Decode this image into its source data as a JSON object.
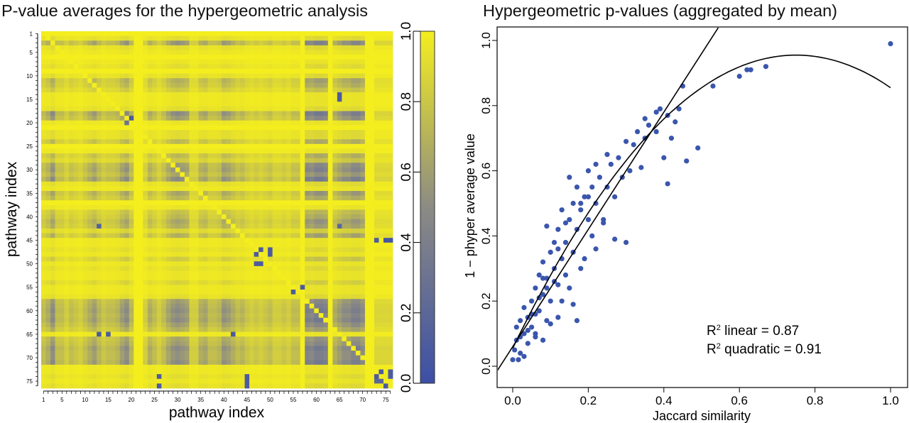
{
  "colors": {
    "low": "#3c4fa6",
    "mid": "#8c8b84",
    "high": "#f4ee1e",
    "point": "#3a56ad",
    "line": "#000000"
  },
  "chart_data": [
    {
      "type": "heatmap",
      "title": "P-value averages for the hypergeometric analysis",
      "xlabel": "pathway index",
      "ylabel": "pathway index",
      "n": 76,
      "tick_labels": [
        "1",
        "5",
        "10",
        "15",
        "20",
        "25",
        "30",
        "35",
        "40",
        "45",
        "50",
        "55",
        "60",
        "65",
        "70",
        "75"
      ],
      "colorbar": {
        "range": [
          0,
          1
        ],
        "ticks": [
          "0.0",
          "0.2",
          "0.4",
          "0.6",
          "0.8",
          "1.0"
        ]
      },
      "model": "value = 1 - 1.6*row_weight*col_weight, diagonal = 1, overridden by outliers [row,col,value]",
      "row_weights": [
        0,
        0.1,
        0.5,
        0.1,
        0.05,
        0,
        0.05,
        0.1,
        0,
        0.1,
        0.35,
        0.3,
        0.2,
        0.05,
        0.05,
        0.05,
        0.1,
        0.55,
        0.45,
        0.05,
        0,
        0.1,
        0.1,
        0.3,
        0,
        0.05,
        0.3,
        0.2,
        0.45,
        0.5,
        0.4,
        0.55,
        0.1,
        0.05,
        0.4,
        0.3,
        0,
        0.05,
        0.25,
        0.3,
        0.4,
        0.35,
        0.15,
        0.35,
        0.05,
        0.05,
        0.1,
        0.05,
        0.2,
        0.05,
        0.1,
        0.05,
        0.05,
        0.15,
        0.05,
        0.05,
        0.1,
        0.45,
        0.5,
        0.55,
        0.5,
        0.55,
        0.45,
        0.35,
        0.05,
        0.4,
        0.45,
        0.55,
        0.5,
        0.5,
        0.55,
        0.05,
        0.05,
        0.1,
        0.05,
        0.1
      ],
      "col_weights": [
        0.3,
        0.4,
        0.6,
        0.3,
        0.3,
        0.2,
        0.3,
        0.25,
        0.2,
        0.3,
        0.4,
        0.5,
        0.35,
        0.25,
        0.3,
        0.3,
        0.35,
        0.5,
        0.6,
        0.35,
        0,
        0,
        0.2,
        0.4,
        0.3,
        0.2,
        0.3,
        0.45,
        0.55,
        0.6,
        0.55,
        0.5,
        0.2,
        0.2,
        0.4,
        0.45,
        0.3,
        0.3,
        0.35,
        0.55,
        0.5,
        0.4,
        0.3,
        0.35,
        0.25,
        0.2,
        0.25,
        0.2,
        0.25,
        0.3,
        0.2,
        0.2,
        0.25,
        0.2,
        0.3,
        0.3,
        0,
        0.7,
        0.65,
        0.75,
        0.75,
        0.7,
        0,
        0.4,
        0.5,
        0.6,
        0.6,
        0.7,
        0.7,
        0.6,
        0,
        0,
        0.15,
        0.15,
        0.15,
        0.15
      ],
      "outliers": [
        [
          19,
          20,
          0.1
        ],
        [
          20,
          19,
          0.3
        ],
        [
          47,
          48,
          0.1
        ],
        [
          48,
          47,
          0.1
        ],
        [
          47,
          50,
          0.1
        ],
        [
          48,
          50,
          0.1
        ],
        [
          50,
          47,
          0.1
        ],
        [
          50,
          48,
          0.1
        ],
        [
          55,
          57,
          0.1
        ],
        [
          56,
          55,
          0.1
        ],
        [
          45,
          73,
          0.1
        ],
        [
          45,
          75,
          0.05
        ],
        [
          45,
          76,
          0.05
        ],
        [
          73,
          74,
          0.1
        ],
        [
          74,
          73,
          0.1
        ],
        [
          73,
          76,
          0.1
        ],
        [
          74,
          76,
          0.1
        ],
        [
          75,
          73,
          0.2
        ],
        [
          75,
          74,
          0.2
        ],
        [
          76,
          75,
          0.1
        ],
        [
          74,
          26,
          0.1
        ],
        [
          76,
          26,
          0.1
        ],
        [
          74,
          45,
          0.1
        ],
        [
          75,
          45,
          0.1
        ],
        [
          76,
          45,
          0.1
        ],
        [
          65,
          13,
          0.1
        ],
        [
          65,
          15,
          0.1
        ],
        [
          65,
          42,
          0.1
        ],
        [
          14,
          65,
          0.1
        ],
        [
          15,
          65,
          0.1
        ],
        [
          42,
          13,
          0.15
        ],
        [
          42,
          65,
          0.2
        ]
      ]
    },
    {
      "type": "scatter",
      "title": "Hypergeometric p-values (aggregated by mean)",
      "xlabel": "Jaccard similarity",
      "ylabel": "1 − phyper average value",
      "xticks": [
        "0.0",
        "0.2",
        "0.4",
        "0.6",
        "0.8",
        "1.0"
      ],
      "yticks": [
        "0.0",
        "0.2",
        "0.4",
        "0.6",
        "0.8",
        "1.0"
      ],
      "xlim": [
        0,
        1
      ],
      "ylim": [
        0,
        1
      ],
      "fits": {
        "linear": {
          "intercept": 0.06,
          "slope": 1.8
        },
        "quadratic": {
          "a": 0.055,
          "b": 2.4,
          "c": -1.6
        }
      },
      "annotations": {
        "r2_prefix": "R",
        "sup": "2",
        "linear": " linear = 0.87",
        "quadratic": " quadratic = 0.91"
      },
      "points": [
        [
          0,
          0.02
        ],
        [
          0.005,
          0.05
        ],
        [
          0.01,
          0.08
        ],
        [
          0.01,
          0.12
        ],
        [
          0.02,
          0.04
        ],
        [
          0.02,
          0.14
        ],
        [
          0.03,
          0.1
        ],
        [
          0.03,
          0.18
        ],
        [
          0.04,
          0.07
        ],
        [
          0.04,
          0.15
        ],
        [
          0.05,
          0.2
        ],
        [
          0.05,
          0.12
        ],
        [
          0.06,
          0.24
        ],
        [
          0.06,
          0.09
        ],
        [
          0.07,
          0.17
        ],
        [
          0.07,
          0.28
        ],
        [
          0.08,
          0.22
        ],
        [
          0.08,
          0.32
        ],
        [
          0.09,
          0.14
        ],
        [
          0.09,
          0.27
        ],
        [
          0.1,
          0.35
        ],
        [
          0.1,
          0.2
        ],
        [
          0.11,
          0.3
        ],
        [
          0.11,
          0.38
        ],
        [
          0.12,
          0.25
        ],
        [
          0.12,
          0.42
        ],
        [
          0.13,
          0.33
        ],
        [
          0.13,
          0.48
        ],
        [
          0.14,
          0.38
        ],
        [
          0.14,
          0.28
        ],
        [
          0.15,
          0.45
        ],
        [
          0.15,
          0.58
        ],
        [
          0.16,
          0.35
        ],
        [
          0.16,
          0.5
        ],
        [
          0.17,
          0.42
        ],
        [
          0.17,
          0.55
        ],
        [
          0.18,
          0.48
        ],
        [
          0.18,
          0.3
        ],
        [
          0.19,
          0.52
        ],
        [
          0.2,
          0.45
        ],
        [
          0.2,
          0.6
        ],
        [
          0.21,
          0.55
        ],
        [
          0.21,
          0.4
        ],
        [
          0.22,
          0.62
        ],
        [
          0.22,
          0.5
        ],
        [
          0.23,
          0.58
        ],
        [
          0.24,
          0.45
        ],
        [
          0.25,
          0.65
        ],
        [
          0.25,
          0.55
        ],
        [
          0.26,
          0.62
        ],
        [
          0.27,
          0.52
        ],
        [
          0.27,
          0.39
        ],
        [
          0.28,
          0.64
        ],
        [
          0.29,
          0.58
        ],
        [
          0.3,
          0.69
        ],
        [
          0.3,
          0.38
        ],
        [
          0.31,
          0.6
        ],
        [
          0.32,
          0.68
        ],
        [
          0.33,
          0.72
        ],
        [
          0.34,
          0.61
        ],
        [
          0.35,
          0.76
        ],
        [
          0.35,
          0.7
        ],
        [
          0.36,
          0.74
        ],
        [
          0.38,
          0.78
        ],
        [
          0.38,
          0.72
        ],
        [
          0.39,
          0.79
        ],
        [
          0.4,
          0.64
        ],
        [
          0.41,
          0.56
        ],
        [
          0.41,
          0.77
        ],
        [
          0.42,
          0.7
        ],
        [
          0.43,
          0.75
        ],
        [
          0.44,
          0.79
        ],
        [
          0.45,
          0.86
        ],
        [
          0.46,
          0.63
        ],
        [
          0.49,
          0.67
        ],
        [
          0.53,
          0.86
        ],
        [
          0.6,
          0.89
        ],
        [
          0.62,
          0.91
        ],
        [
          0.63,
          0.91
        ],
        [
          0.67,
          0.92
        ],
        [
          1.0,
          0.99
        ],
        [
          0.12,
          0.15
        ],
        [
          0.09,
          0.43
        ],
        [
          0.16,
          0.19
        ],
        [
          0.17,
          0.14
        ],
        [
          0.06,
          0.1
        ],
        [
          0.08,
          0.08
        ],
        [
          0.03,
          0.03
        ],
        [
          0.015,
          0.02
        ],
        [
          0.1,
          0.13
        ],
        [
          0.13,
          0.2
        ],
        [
          0.15,
          0.24
        ],
        [
          0.19,
          0.33
        ],
        [
          0.22,
          0.36
        ],
        [
          0.24,
          0.44
        ],
        [
          0.02,
          0.09
        ],
        [
          0.04,
          0.11
        ],
        [
          0.06,
          0.16
        ],
        [
          0.07,
          0.21
        ],
        [
          0.09,
          0.24
        ],
        [
          0.11,
          0.26
        ],
        [
          0.05,
          0.16
        ],
        [
          0.08,
          0.27
        ],
        [
          0.12,
          0.36
        ],
        [
          0.14,
          0.44
        ],
        [
          0.18,
          0.5
        ],
        [
          0.2,
          0.52
        ]
      ]
    }
  ]
}
